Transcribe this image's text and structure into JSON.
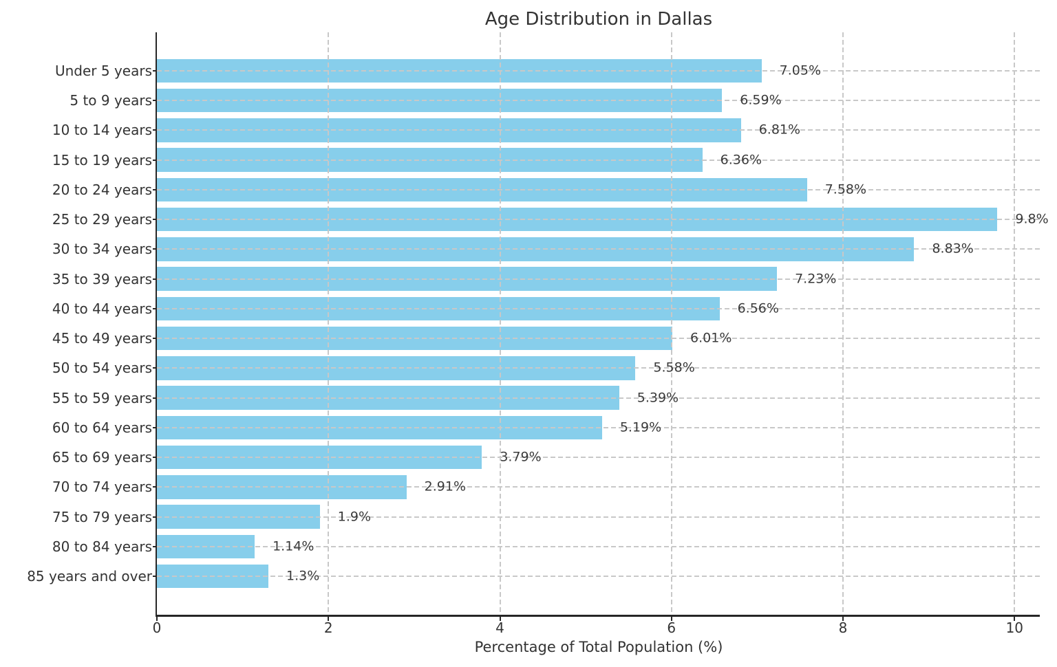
{
  "chart_data": {
    "type": "bar",
    "orientation": "horizontal",
    "title": "Age Distribution in Dallas",
    "xlabel": "Percentage of Total Population (%)",
    "ylabel": "",
    "categories": [
      "Under 5 years",
      "5 to 9 years",
      "10 to 14 years",
      "15 to 19 years",
      "20 to 24 years",
      "25 to 29 years",
      "30 to 34 years",
      "35 to 39 years",
      "40 to 44 years",
      "45 to 49 years",
      "50 to 54 years",
      "55 to 59 years",
      "60 to 64 years",
      "65 to 69 years",
      "70 to 74 years",
      "75 to 79 years",
      "80 to 84 years",
      "85 years and over"
    ],
    "values": [
      7.05,
      6.59,
      6.81,
      6.36,
      7.58,
      9.8,
      8.83,
      7.23,
      6.56,
      6.01,
      5.58,
      5.39,
      5.19,
      3.79,
      2.91,
      1.9,
      1.14,
      1.3
    ],
    "value_label_suffix": "%",
    "xlim": [
      0,
      10.3
    ],
    "xticks": [
      0,
      2,
      4,
      6,
      8,
      10
    ],
    "grid": "dashed gridlines on both axes, drawn over bars",
    "legend_position": "none",
    "bar_color": "#87CEEB",
    "grid_color": "#c8c8c8",
    "axis_color": "#262626",
    "text_color": "#333333",
    "background_color": "#ffffff"
  }
}
